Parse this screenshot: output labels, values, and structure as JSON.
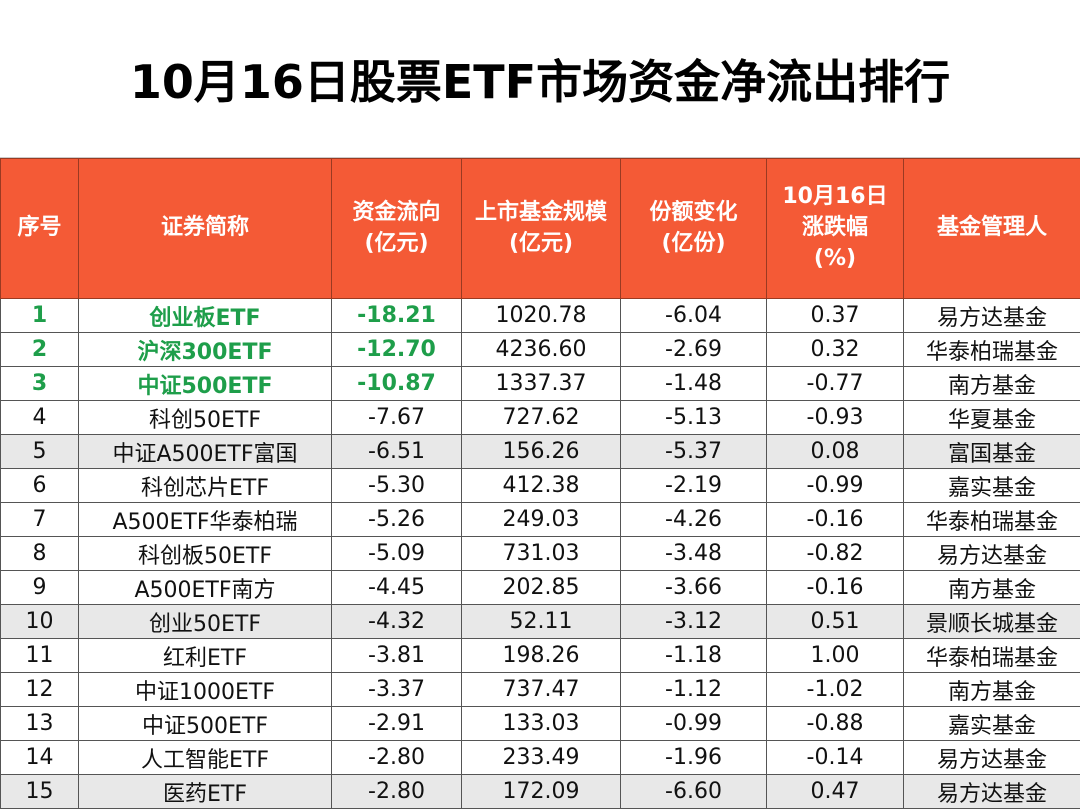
{
  "title": "10月16日股票ETF市场资金净流出排行",
  "colors": {
    "header_bg": "#F45A36",
    "highlight_text": "#1E9E4A",
    "alt_row": "#e8e8e8"
  },
  "headers": [
    "序号",
    "证券简称",
    "资金流向\n(亿元)",
    "上市基金规模\n(亿元)",
    "份额变化\n(亿份)",
    "10月16日\n涨跌幅\n(%)",
    "基金管理人"
  ],
  "rows": [
    [
      "1",
      "创业板ETF",
      "-18.21",
      "1020.78",
      "-6.04",
      "0.37",
      "易方达基金"
    ],
    [
      "2",
      "沪深300ETF",
      "-12.70",
      "4236.60",
      "-2.69",
      "0.32",
      "华泰柏瑞基金"
    ],
    [
      "3",
      "中证500ETF",
      "-10.87",
      "1337.37",
      "-1.48",
      "-0.77",
      "南方基金"
    ],
    [
      "4",
      "科创50ETF",
      "-7.67",
      "727.62",
      "-5.13",
      "-0.93",
      "华夏基金"
    ],
    [
      "5",
      "中证A500ETF富国",
      "-6.51",
      "156.26",
      "-5.37",
      "0.08",
      "富国基金"
    ],
    [
      "6",
      "科创芯片ETF",
      "-5.30",
      "412.38",
      "-2.19",
      "-0.99",
      "嘉实基金"
    ],
    [
      "7",
      "A500ETF华泰柏瑞",
      "-5.26",
      "249.03",
      "-4.26",
      "-0.16",
      "华泰柏瑞基金"
    ],
    [
      "8",
      "科创板50ETF",
      "-5.09",
      "731.03",
      "-3.48",
      "-0.82",
      "易方达基金"
    ],
    [
      "9",
      "A500ETF南方",
      "-4.45",
      "202.85",
      "-3.66",
      "-0.16",
      "南方基金"
    ],
    [
      "10",
      "创业50ETF",
      "-4.32",
      "52.11",
      "-3.12",
      "0.51",
      "景顺长城基金"
    ],
    [
      "11",
      "红利ETF",
      "-3.81",
      "198.26",
      "-1.18",
      "1.00",
      "华泰柏瑞基金"
    ],
    [
      "12",
      "中证1000ETF",
      "-3.37",
      "737.47",
      "-1.12",
      "-1.02",
      "南方基金"
    ],
    [
      "13",
      "中证500ETF",
      "-2.91",
      "133.03",
      "-0.99",
      "-0.88",
      "嘉实基金"
    ],
    [
      "14",
      "人工智能ETF",
      "-2.80",
      "233.49",
      "-1.96",
      "-0.14",
      "易方达基金"
    ],
    [
      "15",
      "医药ETF",
      "-2.80",
      "172.09",
      "-6.60",
      "0.47",
      "易方达基金"
    ]
  ]
}
